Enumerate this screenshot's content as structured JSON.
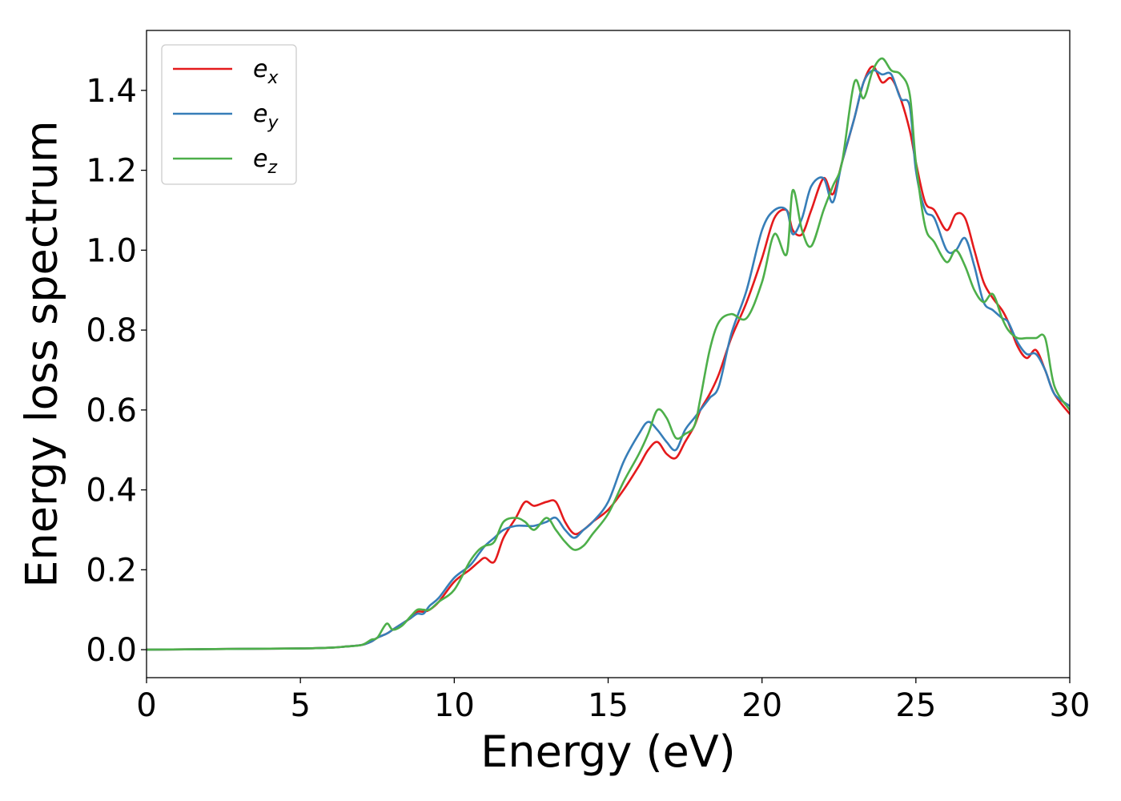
{
  "chart_data": {
    "type": "line",
    "xlabel": "Energy (eV)",
    "ylabel": "Energy loss spectrum",
    "xlim": [
      0,
      30
    ],
    "ylim": [
      -0.07,
      1.55
    ],
    "xticks": [
      0,
      5,
      10,
      15,
      20,
      25,
      30
    ],
    "xtick_labels": [
      "0",
      "5",
      "10",
      "15",
      "20",
      "25",
      "30"
    ],
    "yticks": [
      0.0,
      0.2,
      0.4,
      0.6,
      0.8,
      1.0,
      1.2,
      1.4
    ],
    "ytick_labels": [
      "0.0",
      "0.2",
      "0.4",
      "0.6",
      "0.8",
      "1.0",
      "1.2",
      "1.4"
    ],
    "grid": false,
    "legend_position": "top-left",
    "series": [
      {
        "name": "e",
        "subscript": "x",
        "color": "#e41a1c",
        "x": [
          0,
          3,
          5,
          6,
          6.5,
          7,
          7.3,
          7.5,
          7.8,
          8,
          8.3,
          8.6,
          8.8,
          9,
          9.2,
          9.5,
          10,
          10.5,
          10.8,
          11,
          11.3,
          11.6,
          12,
          12.3,
          12.6,
          13,
          13.3,
          13.6,
          13.9,
          14.2,
          14.5,
          15,
          15.5,
          16,
          16.3,
          16.6,
          16.9,
          17.2,
          17.5,
          17.8,
          18,
          18.3,
          18.6,
          19,
          19.5,
          20,
          20.4,
          20.8,
          21,
          21.3,
          21.6,
          22,
          22.3,
          22.6,
          23,
          23.3,
          23.6,
          23.9,
          24.2,
          24.5,
          24.8,
          25,
          25.3,
          25.6,
          26,
          26.3,
          26.6,
          26.9,
          27.2,
          27.5,
          27.8,
          28,
          28.3,
          28.6,
          28.9,
          29.2,
          29.5,
          30
        ],
        "y": [
          0,
          0.002,
          0.003,
          0.005,
          0.008,
          0.012,
          0.02,
          0.03,
          0.04,
          0.05,
          0.065,
          0.08,
          0.095,
          0.095,
          0.1,
          0.12,
          0.17,
          0.2,
          0.22,
          0.23,
          0.22,
          0.28,
          0.33,
          0.37,
          0.36,
          0.37,
          0.37,
          0.32,
          0.29,
          0.3,
          0.32,
          0.35,
          0.4,
          0.46,
          0.5,
          0.52,
          0.49,
          0.48,
          0.52,
          0.56,
          0.6,
          0.64,
          0.69,
          0.78,
          0.87,
          0.98,
          1.08,
          1.1,
          1.05,
          1.04,
          1.1,
          1.18,
          1.14,
          1.22,
          1.33,
          1.42,
          1.46,
          1.42,
          1.43,
          1.38,
          1.3,
          1.22,
          1.12,
          1.1,
          1.05,
          1.09,
          1.08,
          1.0,
          0.92,
          0.88,
          0.85,
          0.82,
          0.76,
          0.73,
          0.75,
          0.7,
          0.64,
          0.59
        ]
      },
      {
        "name": "e",
        "subscript": "y",
        "color": "#377eb8",
        "x": [
          0,
          3,
          5,
          6,
          6.5,
          7,
          7.3,
          7.5,
          7.8,
          8,
          8.3,
          8.6,
          8.8,
          9,
          9.2,
          9.5,
          10,
          10.5,
          10.8,
          11,
          11.3,
          11.6,
          12,
          12.3,
          12.6,
          13,
          13.3,
          13.6,
          13.9,
          14.2,
          14.5,
          15,
          15.5,
          16,
          16.3,
          16.6,
          16.9,
          17.2,
          17.5,
          17.8,
          18,
          18.3,
          18.6,
          19,
          19.5,
          20,
          20.4,
          20.8,
          21,
          21.3,
          21.6,
          22,
          22.3,
          22.6,
          23,
          23.3,
          23.6,
          23.9,
          24.2,
          24.5,
          24.8,
          25,
          25.3,
          25.6,
          26,
          26.3,
          26.6,
          26.9,
          27.2,
          27.5,
          27.8,
          28,
          28.3,
          28.6,
          28.9,
          29.2,
          29.5,
          30
        ],
        "y": [
          0,
          0.002,
          0.003,
          0.005,
          0.008,
          0.012,
          0.02,
          0.03,
          0.04,
          0.05,
          0.065,
          0.08,
          0.09,
          0.09,
          0.11,
          0.13,
          0.18,
          0.21,
          0.24,
          0.26,
          0.28,
          0.3,
          0.31,
          0.31,
          0.31,
          0.32,
          0.33,
          0.3,
          0.28,
          0.3,
          0.32,
          0.37,
          0.47,
          0.54,
          0.57,
          0.55,
          0.52,
          0.5,
          0.55,
          0.58,
          0.6,
          0.63,
          0.66,
          0.79,
          0.9,
          1.05,
          1.1,
          1.1,
          1.04,
          1.08,
          1.16,
          1.18,
          1.12,
          1.22,
          1.33,
          1.42,
          1.45,
          1.44,
          1.44,
          1.38,
          1.36,
          1.2,
          1.1,
          1.08,
          1.0,
          1.0,
          1.03,
          0.96,
          0.87,
          0.85,
          0.83,
          0.82,
          0.77,
          0.74,
          0.74,
          0.7,
          0.64,
          0.61
        ]
      },
      {
        "name": "e",
        "subscript": "z",
        "color": "#4daf4a",
        "x": [
          0,
          3,
          5,
          6,
          6.5,
          7,
          7.3,
          7.5,
          7.8,
          8,
          8.3,
          8.6,
          8.8,
          9,
          9.2,
          9.5,
          10,
          10.5,
          10.8,
          11,
          11.3,
          11.6,
          12,
          12.3,
          12.6,
          13,
          13.3,
          13.6,
          13.9,
          14.2,
          14.5,
          15,
          15.5,
          16,
          16.3,
          16.6,
          16.9,
          17.2,
          17.5,
          17.8,
          18,
          18.3,
          18.6,
          19,
          19.5,
          20,
          20.4,
          20.8,
          21,
          21.3,
          21.6,
          22,
          22.3,
          22.6,
          23,
          23.3,
          23.6,
          23.9,
          24.2,
          24.5,
          24.8,
          25,
          25.3,
          25.6,
          26,
          26.3,
          26.6,
          26.9,
          27.2,
          27.5,
          27.8,
          28,
          28.3,
          28.6,
          28.9,
          29.2,
          29.5,
          30
        ],
        "y": [
          0,
          0.002,
          0.003,
          0.005,
          0.008,
          0.012,
          0.025,
          0.03,
          0.065,
          0.05,
          0.06,
          0.085,
          0.1,
          0.1,
          0.1,
          0.12,
          0.15,
          0.22,
          0.25,
          0.26,
          0.27,
          0.32,
          0.33,
          0.32,
          0.3,
          0.33,
          0.3,
          0.27,
          0.25,
          0.26,
          0.29,
          0.34,
          0.42,
          0.49,
          0.54,
          0.6,
          0.58,
          0.53,
          0.54,
          0.56,
          0.63,
          0.75,
          0.82,
          0.84,
          0.83,
          0.92,
          1.04,
          0.99,
          1.15,
          1.05,
          1.01,
          1.1,
          1.16,
          1.22,
          1.42,
          1.38,
          1.45,
          1.48,
          1.45,
          1.44,
          1.39,
          1.22,
          1.06,
          1.02,
          0.97,
          1.0,
          0.96,
          0.9,
          0.87,
          0.89,
          0.83,
          0.8,
          0.78,
          0.78,
          0.78,
          0.78,
          0.66,
          0.6
        ]
      }
    ]
  }
}
